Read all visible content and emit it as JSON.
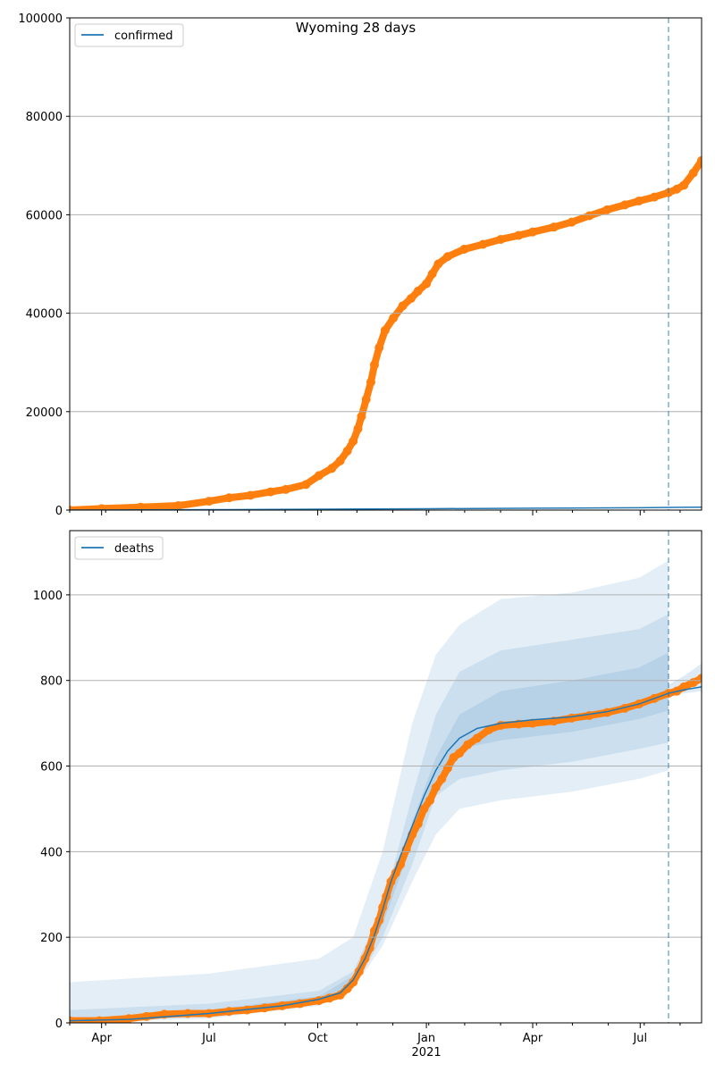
{
  "chart_data": [
    {
      "type": "line",
      "title": "Wyoming 28 days",
      "xlabel": "",
      "ylabel": "",
      "ylim": [
        0,
        100000
      ],
      "xlim_days": [
        0,
        535
      ],
      "x_origin_date": "2020-03-05",
      "yticks": [
        0,
        20000,
        40000,
        60000,
        80000,
        100000
      ],
      "ytick_labels": [
        "0",
        "20000",
        "40000",
        "60000",
        "80000",
        "100000"
      ],
      "grid": true,
      "legend": {
        "placement": "top-left",
        "entries": [
          "confirmed"
        ]
      },
      "forecast_start_day": 507,
      "model_line": {
        "name": "confirmed",
        "color": "#1f77b4",
        "x": [
          0,
          118,
          211,
          302,
          392,
          482,
          535
        ],
        "y": [
          0,
          80,
          180,
          280,
          380,
          480,
          600
        ]
      },
      "observed": {
        "color": "#ff7f0e",
        "x": [
          0,
          27,
          60,
          92,
          118,
          135,
          153,
          170,
          183,
          200,
          211,
          222,
          229,
          235,
          240,
          244,
          247,
          251,
          255,
          258,
          262,
          267,
          274,
          282,
          289,
          295,
          302,
          307,
          312,
          320,
          334,
          350,
          365,
          380,
          392,
          410,
          425,
          440,
          455,
          470,
          482,
          495,
          507,
          514,
          520,
          528,
          535
        ],
        "y": [
          0,
          300,
          600,
          900,
          1800,
          2500,
          3000,
          3700,
          4200,
          5200,
          7000,
          8500,
          10000,
          12000,
          14000,
          16500,
          19000,
          22500,
          26000,
          29500,
          33000,
          36500,
          39000,
          41500,
          43000,
          44500,
          46000,
          48000,
          50000,
          51500,
          53000,
          54000,
          55000,
          55800,
          56500,
          57500,
          58500,
          59800,
          61000,
          62000,
          62800,
          63600,
          64500,
          65200,
          66000,
          68500,
          71000
        ]
      }
    },
    {
      "type": "line",
      "title": "",
      "xlabel": "",
      "ylabel": "",
      "ylim": [
        0,
        1150
      ],
      "xlim_days": [
        0,
        535
      ],
      "yticks": [
        0,
        200,
        400,
        600,
        800,
        1000
      ],
      "ytick_labels": [
        "0",
        "200",
        "400",
        "600",
        "800",
        "1000"
      ],
      "xticks_days": [
        27,
        118,
        210,
        302,
        392,
        483
      ],
      "xtick_labels": [
        "Apr",
        "Jul",
        "Oct",
        "Jan",
        "Apr",
        "Jul"
      ],
      "xtick_year_label": "2021",
      "grid": true,
      "legend": {
        "placement": "top-left",
        "entries": [
          "deaths"
        ]
      },
      "forecast_start_day": 507,
      "bands": [
        {
          "name": "outer",
          "color": "#1f77b4",
          "opacity": 0.12,
          "x": [
            0,
            118,
            211,
            240,
            265,
            290,
            310,
            330,
            365,
            425,
            482,
            507
          ],
          "hi": [
            95,
            115,
            150,
            200,
            400,
            700,
            860,
            930,
            990,
            1005,
            1040,
            1080
          ],
          "lo": [
            0,
            10,
            40,
            80,
            180,
            330,
            440,
            500,
            520,
            540,
            570,
            590
          ]
        },
        {
          "name": "middle",
          "color": "#1f77b4",
          "opacity": 0.12,
          "x": [
            0,
            118,
            211,
            240,
            265,
            290,
            310,
            330,
            365,
            425,
            482,
            507
          ],
          "hi": [
            30,
            45,
            75,
            120,
            270,
            530,
            720,
            820,
            870,
            895,
            920,
            955
          ],
          "lo": [
            0,
            15,
            45,
            80,
            200,
            370,
            530,
            570,
            590,
            610,
            640,
            655
          ]
        },
        {
          "name": "inner",
          "color": "#1f77b4",
          "opacity": 0.12,
          "x": [
            0,
            118,
            211,
            240,
            265,
            290,
            310,
            330,
            365,
            425,
            482,
            507
          ],
          "hi": [
            10,
            30,
            62,
            110,
            250,
            470,
            620,
            720,
            775,
            800,
            830,
            865
          ],
          "lo": [
            2,
            20,
            55,
            90,
            230,
            420,
            570,
            640,
            660,
            680,
            710,
            730
          ]
        },
        {
          "name": "post",
          "color": "#1f77b4",
          "opacity": 0.15,
          "x": [
            507,
            520,
            535
          ],
          "hi": [
            790,
            810,
            840
          ],
          "lo": [
            765,
            770,
            775
          ]
        }
      ],
      "model_line": {
        "name": "deaths",
        "color": "#1f77b4",
        "x": [
          0,
          50,
          118,
          180,
          211,
          229,
          240,
          250,
          258,
          265,
          272,
          280,
          290,
          300,
          310,
          320,
          330,
          345,
          365,
          392,
          425,
          455,
          482,
          507,
          520,
          535
        ],
        "y": [
          5,
          8,
          22,
          40,
          55,
          70,
          100,
          150,
          205,
          265,
          330,
          390,
          460,
          530,
          590,
          635,
          665,
          688,
          700,
          708,
          715,
          727,
          745,
          770,
          778,
          785
        ]
      },
      "observed": {
        "color": "#ff7f0e",
        "x": [
          0,
          25,
          50,
          65,
          80,
          100,
          118,
          135,
          150,
          165,
          180,
          195,
          211,
          220,
          229,
          235,
          240,
          245,
          250,
          254,
          258,
          262,
          265,
          268,
          272,
          276,
          280,
          285,
          290,
          295,
          300,
          305,
          310,
          315,
          320,
          325,
          330,
          337,
          345,
          355,
          365,
          380,
          392,
          410,
          425,
          440,
          455,
          470,
          482,
          495,
          507,
          514,
          520,
          528,
          535
        ],
        "y": [
          5,
          5,
          10,
          15,
          20,
          22,
          22,
          27,
          30,
          35,
          40,
          45,
          52,
          58,
          65,
          80,
          95,
          120,
          150,
          175,
          215,
          240,
          270,
          295,
          330,
          350,
          370,
          405,
          440,
          465,
          500,
          520,
          550,
          570,
          595,
          620,
          630,
          650,
          665,
          685,
          695,
          698,
          700,
          705,
          712,
          718,
          725,
          735,
          745,
          758,
          770,
          775,
          785,
          795,
          805
        ]
      }
    }
  ]
}
